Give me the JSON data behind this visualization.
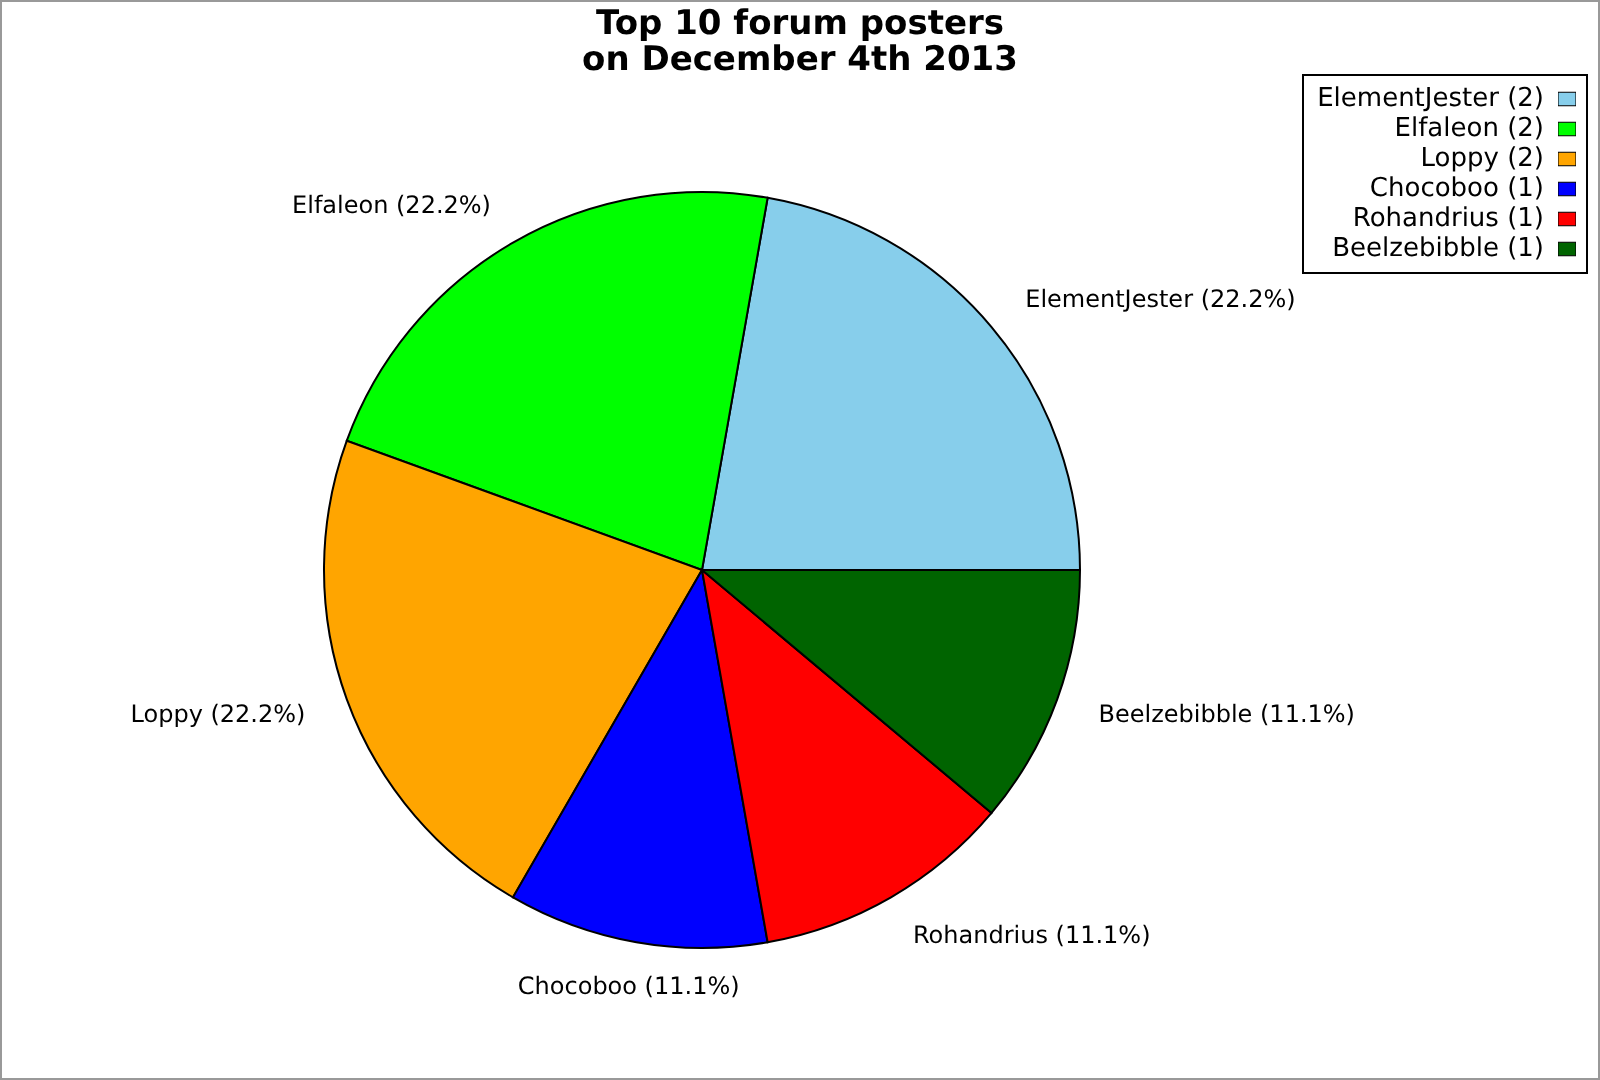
{
  "chart_data": {
    "type": "pie",
    "title": "Top 10 forum posters\non December 4th 2013",
    "categories": [
      "ElementJester (2)",
      "Elfaleon (2)",
      "Loppy (2)",
      "Chocoboo (1)",
      "Rohandrius (1)",
      "Beelzebibble (1)"
    ],
    "values": [
      22.2,
      22.2,
      22.2,
      11.1,
      11.1,
      11.1
    ],
    "value_labels": [
      "ElementJester (22.2%)",
      "Elfaleon (22.2%)",
      "Loppy (22.2%)",
      "Chocoboo (11.1%)",
      "Rohandrius (11.1%)",
      "Beelzebibble (11.1%)"
    ],
    "colors": [
      "#87ceeb",
      "#00ff00",
      "#ffa500",
      "#0000ff",
      "#ff0000",
      "#006400"
    ],
    "legend": "top right"
  }
}
